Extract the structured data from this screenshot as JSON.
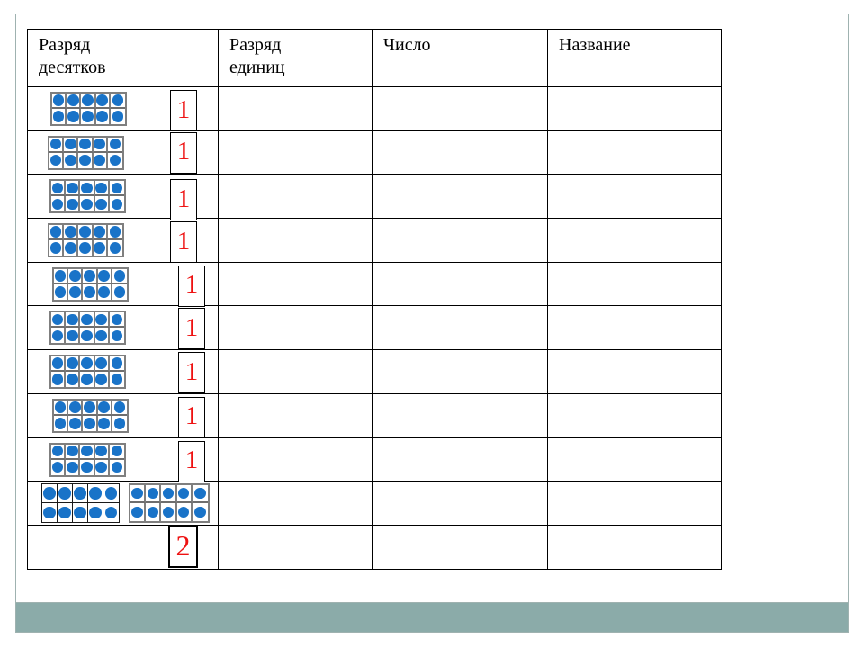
{
  "slide": {
    "background": "#ffffff",
    "border_color": "#9fb2b0",
    "footer_bar_color": "#8baba9"
  },
  "table": {
    "headers": [
      "Разряд десятков",
      "Разряд единиц",
      "Число",
      "Название"
    ],
    "colors": {
      "dot_blue": "#1973c8",
      "grid_grey": "#7f7f7f",
      "digit_red": "#ee1111",
      "line_black": "#000000"
    },
    "dots_per_frame": 10,
    "frame_layout": "2x5",
    "rows": [
      {
        "tens_frames": 1,
        "units": "1"
      },
      {
        "tens_frames": 1,
        "units": "1"
      },
      {
        "tens_frames": 1,
        "units": "1"
      },
      {
        "tens_frames": 1,
        "units": "1"
      },
      {
        "tens_frames": 1,
        "units": "1"
      },
      {
        "tens_frames": 1,
        "units": "1"
      },
      {
        "tens_frames": 1,
        "units": "1"
      },
      {
        "tens_frames": 1,
        "units": "1"
      },
      {
        "tens_frames": 1,
        "units": "1"
      },
      {
        "tens_frames": 2,
        "units": ""
      },
      {
        "tens_frames": 0,
        "units": "2"
      }
    ]
  }
}
